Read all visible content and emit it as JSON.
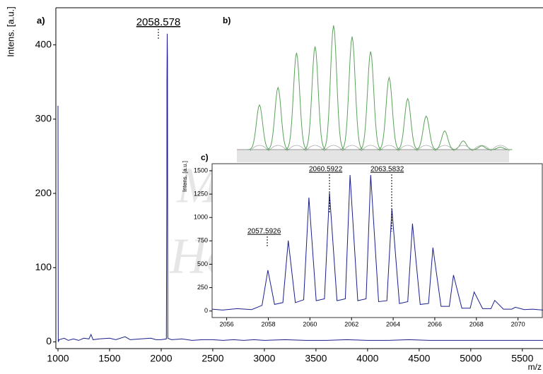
{
  "chart_data": [
    {
      "type": "line",
      "panel_label": "a)",
      "y_label": "Intens. [a.u.]",
      "x_label": "m/z",
      "color": "#1a1f8c",
      "xlim": [
        1000,
        5700
      ],
      "ylim": [
        -9,
        450
      ],
      "xticks": [
        1000,
        1500,
        2000,
        2500,
        3000,
        3500,
        4000,
        4500,
        5000,
        5500
      ],
      "yticks": [
        0,
        100,
        200,
        300,
        400
      ],
      "annotation": "2058.578",
      "x": [
        1000,
        1003,
        1010,
        1060,
        1100,
        1150,
        1200,
        1250,
        1300,
        1320,
        1340,
        1400,
        1500,
        1560,
        1650,
        1700,
        1800,
        1900,
        1950,
        2000,
        2050,
        2055,
        2056,
        2058.578,
        2061,
        2064,
        2100,
        2200,
        2300,
        2400,
        2500,
        2600,
        2700,
        2800,
        2900,
        3000,
        3200,
        3400,
        3600,
        3800,
        4000,
        4200,
        4400,
        4600,
        4800,
        5000,
        5200,
        5400,
        5600,
        5700
      ],
      "values": [
        318,
        0,
        3,
        5,
        2,
        4,
        2,
        5,
        4,
        10,
        3,
        4,
        5,
        3,
        7,
        3,
        4,
        5,
        3,
        3,
        4,
        200,
        350,
        415,
        380,
        5,
        3,
        4,
        2,
        3,
        3,
        2,
        3,
        2,
        3,
        2,
        3,
        2,
        2,
        3,
        2,
        2,
        3,
        2,
        2,
        2,
        2,
        2,
        2,
        2
      ]
    },
    {
      "type": "isotope",
      "panel_label": "b)",
      "color": "#5aa25a",
      "ylim": [
        0,
        100
      ],
      "values": [
        36,
        50,
        78,
        83,
        100,
        91,
        79,
        58,
        41,
        27,
        15,
        7,
        3,
        2
      ]
    },
    {
      "type": "line",
      "panel_label": "c)",
      "y_label": "Intens. [a.u.]",
      "color": "#1a1f8c",
      "xlim": [
        2055.3,
        2071.2
      ],
      "ylim": [
        -70,
        1575
      ],
      "xticks": [
        2056,
        2058,
        2060,
        2062,
        2064,
        2066,
        2068,
        2070
      ],
      "yticks": [
        0,
        250,
        500,
        750,
        1000,
        1250,
        1500
      ],
      "annotations": [
        "2057.5926",
        "2060.5922",
        "2063.5832"
      ],
      "x": [
        2055.3,
        2055.8,
        2056.5,
        2057.2,
        2057.7,
        2057.98,
        2058.3,
        2058.7,
        2058.96,
        2059.3,
        2059.7,
        2059.95,
        2060.3,
        2060.7,
        2060.94,
        2061.3,
        2061.7,
        2061.93,
        2062.3,
        2062.7,
        2062.92,
        2063.3,
        2063.7,
        2063.94,
        2064.3,
        2064.7,
        2064.93,
        2065.3,
        2065.7,
        2065.91,
        2066.3,
        2066.7,
        2066.9,
        2067.3,
        2067.7,
        2067.89,
        2068.3,
        2068.7,
        2068.88,
        2069.3,
        2069.7,
        2069.87,
        2070.3,
        2070.7,
        2071.2
      ],
      "values": [
        20,
        10,
        25,
        15,
        60,
        437,
        70,
        90,
        753,
        90,
        120,
        1213,
        110,
        130,
        1266,
        110,
        130,
        1454,
        110,
        130,
        1454,
        100,
        110,
        1093,
        80,
        100,
        934,
        70,
        80,
        678,
        50,
        50,
        384,
        30,
        30,
        203,
        25,
        25,
        113,
        20,
        20,
        40,
        15,
        20,
        10
      ]
    }
  ],
  "watermark": [
    "Miguel",
    "Hernández"
  ]
}
